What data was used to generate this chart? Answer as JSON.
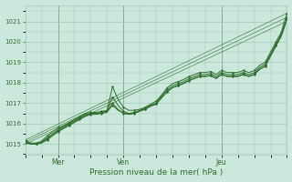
{
  "title": "",
  "xlabel": "Pression niveau de la mer( hPa )",
  "ylabel": "",
  "bg_color": "#cce8dc",
  "grid_color": "#a0c8b8",
  "line_color": "#2d6e2d",
  "vline_color": "#336633",
  "ylim": [
    1014.5,
    1021.8
  ],
  "xlim": [
    0,
    96
  ],
  "yticks": [
    1015,
    1016,
    1017,
    1018,
    1019,
    1020,
    1021
  ],
  "day_ticks": [
    12,
    36,
    72
  ],
  "day_labels": [
    "Mer",
    "Ven",
    "Jeu"
  ],
  "series1_x": [
    0,
    2,
    4,
    6,
    8,
    10,
    12,
    14,
    16,
    18,
    20,
    22,
    24,
    26,
    28,
    30,
    32,
    34,
    36,
    38,
    40,
    42,
    44,
    46,
    48,
    50,
    52,
    54,
    56,
    58,
    60,
    62,
    64,
    66,
    68,
    70,
    72,
    74,
    76,
    78,
    80,
    82,
    84,
    86,
    88,
    90,
    92,
    94,
    96
  ],
  "series1_y": [
    1015.2,
    1015.0,
    1015.0,
    1015.15,
    1015.4,
    1015.6,
    1015.8,
    1015.9,
    1016.05,
    1016.2,
    1016.35,
    1016.5,
    1016.55,
    1016.55,
    1016.6,
    1016.65,
    1017.8,
    1017.2,
    1016.8,
    1016.65,
    1016.65,
    1016.7,
    1016.8,
    1016.95,
    1017.1,
    1017.4,
    1017.75,
    1017.95,
    1018.05,
    1018.15,
    1018.3,
    1018.4,
    1018.5,
    1018.5,
    1018.55,
    1018.4,
    1018.6,
    1018.5,
    1018.5,
    1018.5,
    1018.6,
    1018.5,
    1018.6,
    1018.85,
    1019.0,
    1019.5,
    1020.0,
    1020.5,
    1021.4
  ],
  "series2_x": [
    0,
    2,
    4,
    6,
    8,
    10,
    12,
    14,
    16,
    18,
    20,
    22,
    24,
    26,
    28,
    30,
    32,
    34,
    36,
    38,
    40,
    42,
    44,
    46,
    48,
    50,
    52,
    54,
    56,
    58,
    60,
    62,
    64,
    66,
    68,
    70,
    72,
    74,
    76,
    78,
    80,
    82,
    84,
    86,
    88,
    90,
    92,
    94,
    96
  ],
  "series2_y": [
    1015.1,
    1015.0,
    1015.0,
    1015.1,
    1015.3,
    1015.5,
    1015.7,
    1015.85,
    1016.0,
    1016.15,
    1016.3,
    1016.45,
    1016.5,
    1016.5,
    1016.55,
    1016.6,
    1017.3,
    1016.9,
    1016.6,
    1016.5,
    1016.55,
    1016.65,
    1016.75,
    1016.9,
    1017.0,
    1017.35,
    1017.65,
    1017.85,
    1017.95,
    1018.05,
    1018.2,
    1018.3,
    1018.4,
    1018.4,
    1018.45,
    1018.3,
    1018.5,
    1018.4,
    1018.4,
    1018.4,
    1018.5,
    1018.4,
    1018.5,
    1018.75,
    1018.9,
    1019.4,
    1019.9,
    1020.4,
    1021.2
  ],
  "series3_x": [
    0,
    2,
    4,
    6,
    8,
    10,
    12,
    14,
    16,
    18,
    20,
    22,
    24,
    26,
    28,
    30,
    32,
    34,
    36,
    38,
    40,
    42,
    44,
    46,
    48,
    50,
    52,
    54,
    56,
    58,
    60,
    62,
    64,
    66,
    68,
    70,
    72,
    74,
    76,
    78,
    80,
    82,
    84,
    86,
    88,
    90,
    92,
    94,
    96
  ],
  "series3_y": [
    1015.05,
    1015.0,
    1015.0,
    1015.05,
    1015.2,
    1015.4,
    1015.6,
    1015.75,
    1015.9,
    1016.05,
    1016.2,
    1016.35,
    1016.45,
    1016.45,
    1016.5,
    1016.55,
    1017.0,
    1016.7,
    1016.5,
    1016.45,
    1016.5,
    1016.6,
    1016.7,
    1016.85,
    1016.95,
    1017.25,
    1017.55,
    1017.75,
    1017.85,
    1017.95,
    1018.1,
    1018.2,
    1018.3,
    1018.3,
    1018.35,
    1018.2,
    1018.4,
    1018.3,
    1018.3,
    1018.3,
    1018.4,
    1018.3,
    1018.4,
    1018.65,
    1018.8,
    1019.3,
    1019.8,
    1020.3,
    1021.1
  ],
  "series4_x": [
    0,
    2,
    4,
    6,
    8,
    10,
    12,
    14,
    16,
    18,
    20,
    22,
    24,
    26,
    28,
    30,
    32,
    34,
    36,
    38,
    40,
    42,
    44,
    46,
    48,
    50,
    52,
    54,
    56,
    58,
    60,
    62,
    64,
    66,
    68,
    70,
    72,
    74,
    76,
    78,
    80,
    82,
    84,
    86,
    88,
    90,
    92,
    94,
    96
  ],
  "series4_y": [
    1015.15,
    1015.05,
    1015.05,
    1015.1,
    1015.25,
    1015.45,
    1015.65,
    1015.8,
    1015.95,
    1016.1,
    1016.25,
    1016.4,
    1016.48,
    1016.48,
    1016.53,
    1016.58,
    1016.9,
    1016.65,
    1016.52,
    1016.47,
    1016.52,
    1016.62,
    1016.72,
    1016.87,
    1016.97,
    1017.27,
    1017.57,
    1017.77,
    1017.87,
    1017.97,
    1018.12,
    1018.22,
    1018.32,
    1018.32,
    1018.37,
    1018.22,
    1018.42,
    1018.32,
    1018.32,
    1018.32,
    1018.42,
    1018.32,
    1018.42,
    1018.67,
    1018.82,
    1019.32,
    1019.82,
    1020.32,
    1021.12
  ],
  "straight_lines": [
    {
      "x": [
        0,
        96
      ],
      "y": [
        1015.2,
        1021.4
      ]
    },
    {
      "x": [
        0,
        96
      ],
      "y": [
        1015.1,
        1021.2
      ]
    },
    {
      "x": [
        0,
        96
      ],
      "y": [
        1015.0,
        1021.0
      ]
    }
  ]
}
